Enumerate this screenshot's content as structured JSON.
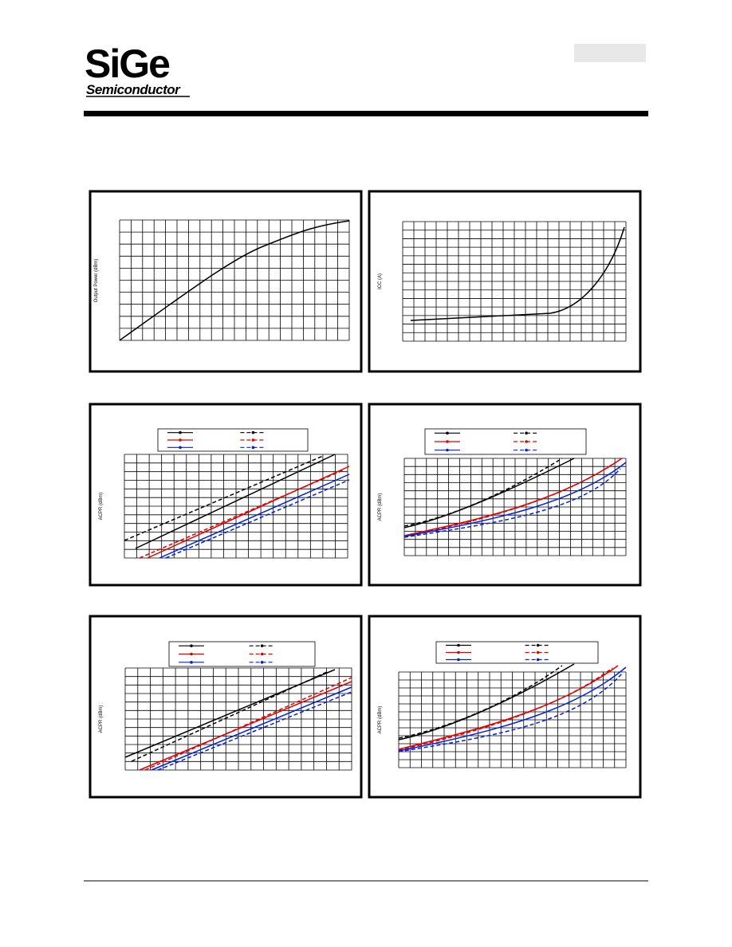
{
  "header": {
    "logo": "SiGe",
    "logo_subtitle": "Semiconductor"
  },
  "charts": [
    {
      "y_label": "Output Power (dBm)"
    },
    {
      "y_label": "ICC (A)"
    },
    {
      "y_label": "ACPR (dBm)"
    },
    {
      "y_label": "ACPR (dBm)"
    },
    {
      "y_label": "ACPR (dBm)"
    },
    {
      "y_label": "ACPR (dBm)"
    }
  ]
}
